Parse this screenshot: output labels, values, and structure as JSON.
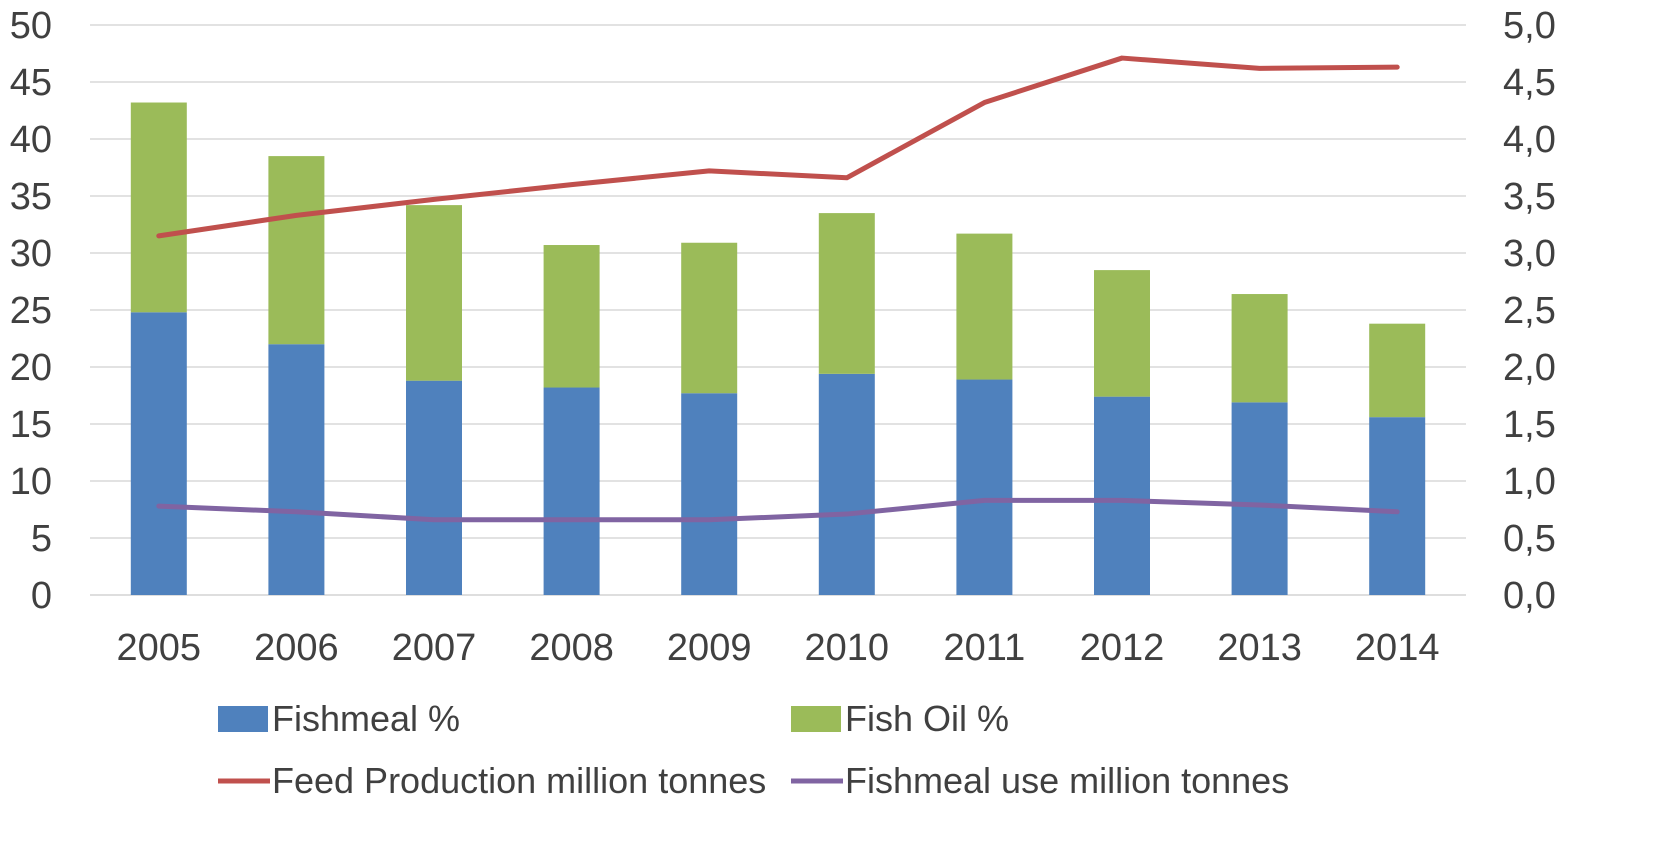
{
  "chart_data": {
    "type": "bar",
    "stacked": true,
    "categories": [
      "2005",
      "2006",
      "2007",
      "2008",
      "2009",
      "2010",
      "2011",
      "2012",
      "2013",
      "2014"
    ],
    "series": [
      {
        "name": "Fishmeal %",
        "kind": "bar",
        "axis": "left",
        "color": "#4F81BD",
        "values": [
          24.8,
          22.0,
          18.8,
          18.2,
          17.7,
          19.4,
          18.9,
          17.4,
          16.9,
          15.6
        ]
      },
      {
        "name": "Fish Oil %",
        "kind": "bar",
        "axis": "left",
        "color": "#9BBB59",
        "values": [
          18.4,
          16.5,
          15.4,
          12.5,
          13.2,
          14.1,
          12.8,
          11.1,
          9.5,
          8.2
        ]
      },
      {
        "name": "Feed Production million tonnes",
        "kind": "line",
        "axis": "right",
        "color": "#C0504D",
        "values": [
          3.15,
          3.33,
          3.47,
          3.6,
          3.72,
          3.66,
          4.32,
          4.71,
          4.62,
          4.63
        ]
      },
      {
        "name": "Fishmeal use million tonnes",
        "kind": "line",
        "axis": "right",
        "color": "#8064A2",
        "values": [
          0.78,
          0.73,
          0.66,
          0.66,
          0.66,
          0.71,
          0.83,
          0.83,
          0.79,
          0.73
        ]
      }
    ],
    "y_left": {
      "min": 0,
      "max": 50,
      "step": 5,
      "ticks": [
        "0",
        "5",
        "10",
        "15",
        "20",
        "25",
        "30",
        "35",
        "40",
        "45",
        "50"
      ]
    },
    "y_right": {
      "min": 0,
      "max": 5,
      "step": 0.5,
      "ticks": [
        "0,0",
        "0,5",
        "1,0",
        "1,5",
        "2,0",
        "2,5",
        "3,0",
        "3,5",
        "4,0",
        "4,5",
        "5,0"
      ]
    },
    "grid": true,
    "legend_position": "bottom",
    "title": "",
    "xlabel": "",
    "ylabel": ""
  }
}
